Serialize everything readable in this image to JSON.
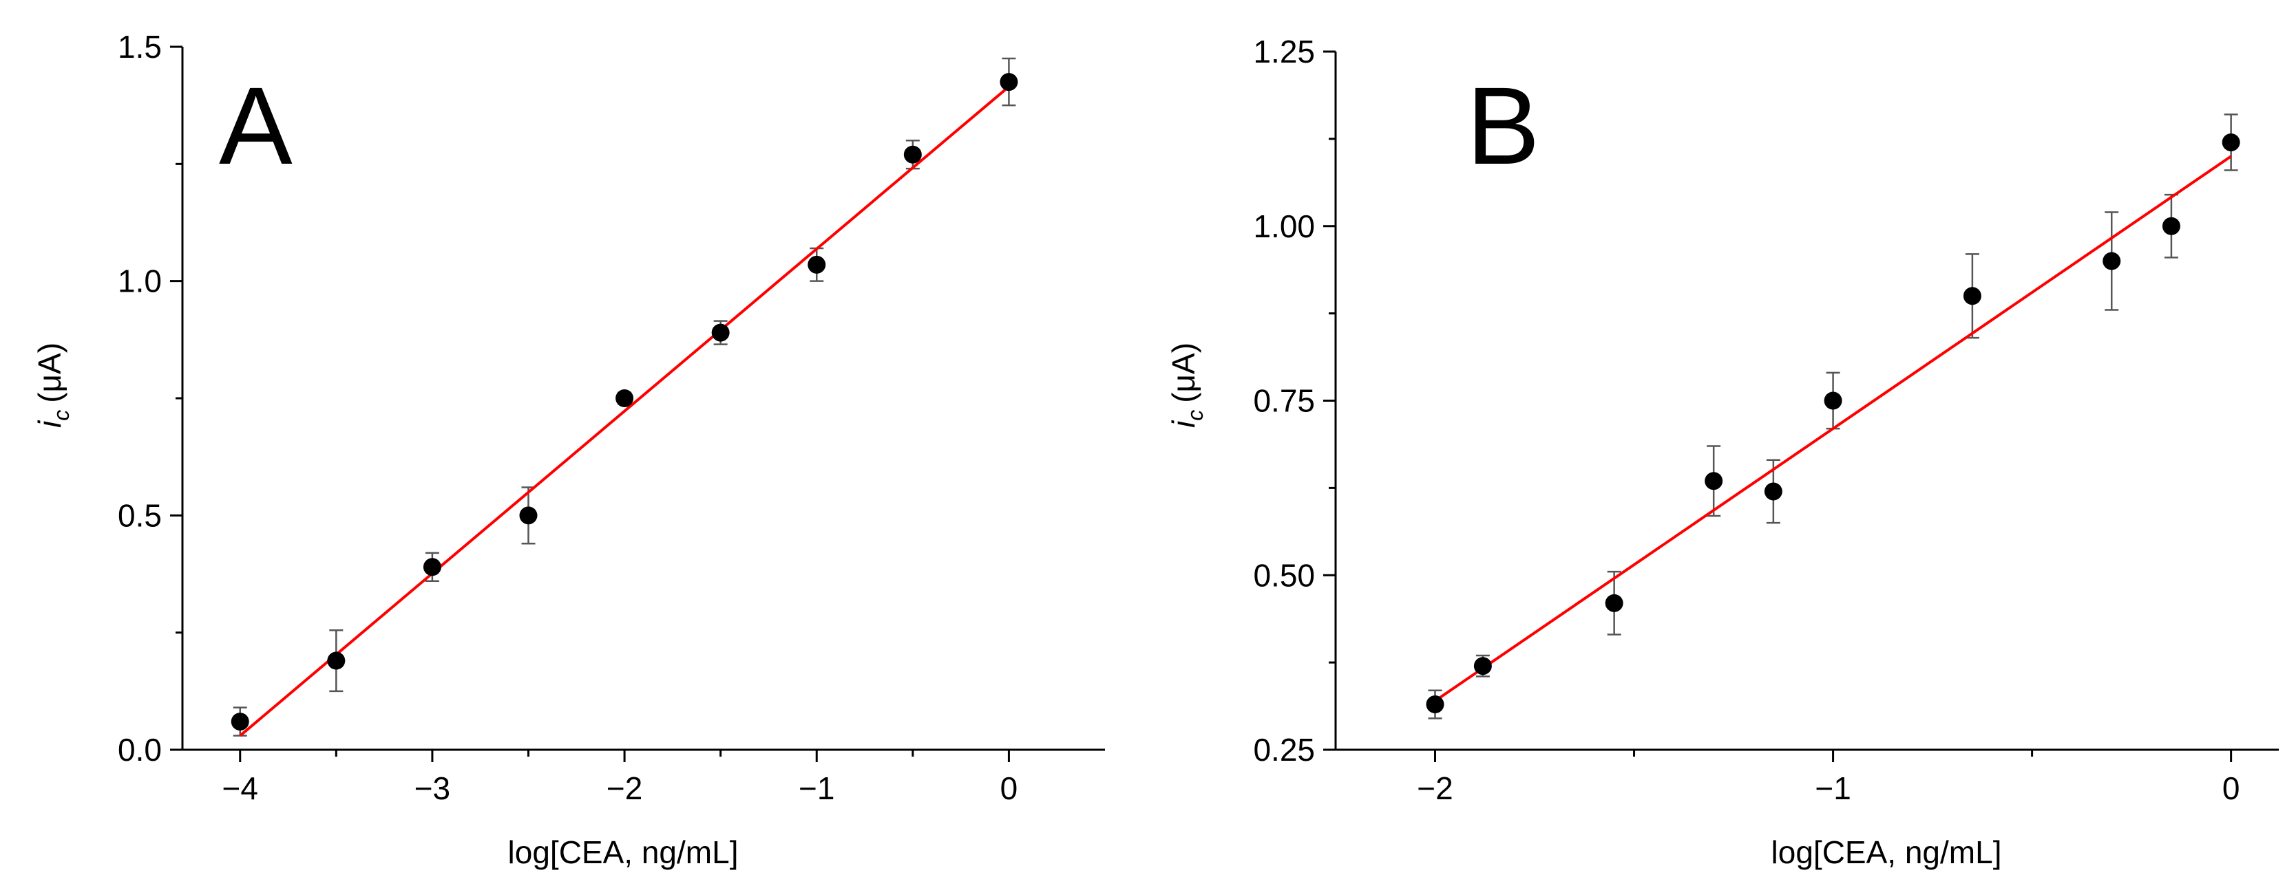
{
  "colors": {
    "fit": "#ff0000",
    "points": "#000000",
    "errorbars": "#555555"
  },
  "chart_data": [
    {
      "type": "scatter",
      "panel_label": "A",
      "xlabel": "log[CEA, ng/mL]",
      "ylabel_var": "i",
      "ylabel_sub": "c",
      "ylabel_unit": "(μA)",
      "xlim": [
        -4.3,
        0.5
      ],
      "ylim": [
        0.0,
        1.5
      ],
      "xticks": [
        -4,
        -3,
        -2,
        -1,
        0
      ],
      "xtick_labels": [
        "−4",
        "−3",
        "−2",
        "−1",
        "0"
      ],
      "xminor": [
        -3.5,
        -2.5,
        -1.5,
        -0.5
      ],
      "yticks": [
        0.0,
        0.5,
        1.0,
        1.5
      ],
      "ytick_labels": [
        "0.0",
        "0.5",
        "1.0",
        "1.5"
      ],
      "yminor": [
        0.25,
        0.75,
        1.25
      ],
      "points": [
        {
          "x": -4.0,
          "y": 0.06,
          "err": 0.03
        },
        {
          "x": -3.5,
          "y": 0.19,
          "err": 0.065
        },
        {
          "x": -3.0,
          "y": 0.39,
          "err": 0.03
        },
        {
          "x": -2.5,
          "y": 0.5,
          "err": 0.06
        },
        {
          "x": -2.0,
          "y": 0.75,
          "err": 0.012
        },
        {
          "x": -1.5,
          "y": 0.89,
          "err": 0.025
        },
        {
          "x": -1.0,
          "y": 1.035,
          "err": 0.035
        },
        {
          "x": -0.5,
          "y": 1.27,
          "err": 0.03
        },
        {
          "x": 0.0,
          "y": 1.425,
          "err": 0.05
        }
      ],
      "fit": {
        "x": [
          -4.0,
          0.0
        ],
        "y": [
          0.03,
          1.415
        ]
      }
    },
    {
      "type": "scatter",
      "panel_label": "B",
      "xlabel": "log[CEA, ng/mL]",
      "ylabel_var": "i",
      "ylabel_sub": "c",
      "ylabel_unit": "(μA)",
      "xlim": [
        -2.25,
        0.12
      ],
      "ylim": [
        0.25,
        1.25
      ],
      "xticks": [
        -2,
        -1,
        0
      ],
      "xtick_labels": [
        "−2",
        "−1",
        "0"
      ],
      "xminor": [
        -1.5,
        -0.5
      ],
      "yticks": [
        0.25,
        0.5,
        0.75,
        1.0,
        1.25
      ],
      "ytick_labels": [
        "0.25",
        "0.50",
        "0.75",
        "1.00",
        "1.25"
      ],
      "yminor": [
        0.375,
        0.625,
        0.875,
        1.125
      ],
      "points": [
        {
          "x": -2.0,
          "y": 0.315,
          "err": 0.02
        },
        {
          "x": -1.88,
          "y": 0.37,
          "err": 0.015
        },
        {
          "x": -1.55,
          "y": 0.46,
          "err": 0.045
        },
        {
          "x": -1.3,
          "y": 0.635,
          "err": 0.05
        },
        {
          "x": -1.15,
          "y": 0.62,
          "err": 0.045
        },
        {
          "x": -1.0,
          "y": 0.75,
          "err": 0.04
        },
        {
          "x": -0.65,
          "y": 0.9,
          "err": 0.06
        },
        {
          "x": -0.3,
          "y": 0.95,
          "err": 0.07
        },
        {
          "x": -0.15,
          "y": 1.0,
          "err": 0.045
        },
        {
          "x": 0.0,
          "y": 1.12,
          "err": 0.04
        }
      ],
      "fit": {
        "x": [
          -2.0,
          0.0
        ],
        "y": [
          0.32,
          1.1
        ]
      }
    }
  ]
}
